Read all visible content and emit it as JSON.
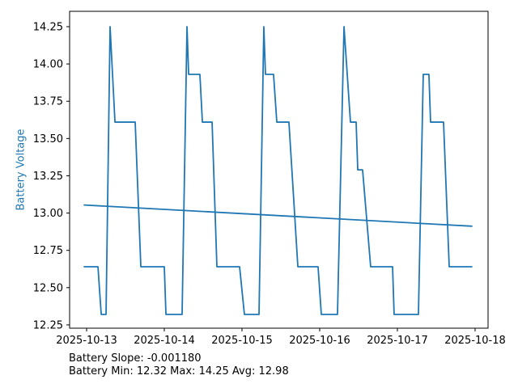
{
  "chart_data": {
    "type": "line",
    "title": "",
    "xlabel": "",
    "ylabel": "Battery Voltage",
    "ylabel_color": "#1f77b4",
    "line_color": "#1f77b4",
    "axis_color": "#000000",
    "background_color": "#ffffff",
    "grid": false,
    "legend": "none",
    "x_unit": "days since 2025-10-13 00:00",
    "xlim": [
      -0.219,
      5.167
    ],
    "ylim": [
      12.228,
      14.353
    ],
    "xticks": [
      {
        "t": 0,
        "label": "2025-10-13"
      },
      {
        "t": 1,
        "label": "2025-10-14"
      },
      {
        "t": 2,
        "label": "2025-10-15"
      },
      {
        "t": 3,
        "label": "2025-10-16"
      },
      {
        "t": 4,
        "label": "2025-10-17"
      },
      {
        "t": 5,
        "label": "2025-10-18"
      }
    ],
    "yticks": [
      {
        "v": 12.25,
        "label": "12.25"
      },
      {
        "v": 12.5,
        "label": "12.50"
      },
      {
        "v": 12.75,
        "label": "12.75"
      },
      {
        "v": 13.0,
        "label": "13.00"
      },
      {
        "v": 13.25,
        "label": "13.25"
      },
      {
        "v": 13.5,
        "label": "13.50"
      },
      {
        "v": 13.75,
        "label": "13.75"
      },
      {
        "v": 14.0,
        "label": "14.00"
      },
      {
        "v": 14.25,
        "label": "14.25"
      }
    ],
    "series": [
      {
        "name": "battery_voltage",
        "color": "#1f77b4",
        "points": [
          [
            -0.031,
            12.64
          ],
          [
            0.146,
            12.64
          ],
          [
            0.188,
            12.32
          ],
          [
            0.25,
            12.32
          ],
          [
            0.302,
            14.25
          ],
          [
            0.365,
            13.61
          ],
          [
            0.625,
            13.61
          ],
          [
            0.698,
            12.64
          ],
          [
            1.0,
            12.64
          ],
          [
            1.021,
            12.32
          ],
          [
            1.229,
            12.32
          ],
          [
            1.292,
            14.25
          ],
          [
            1.313,
            13.93
          ],
          [
            1.458,
            13.93
          ],
          [
            1.49,
            13.61
          ],
          [
            1.615,
            13.61
          ],
          [
            1.677,
            12.64
          ],
          [
            1.969,
            12.64
          ],
          [
            2.031,
            12.32
          ],
          [
            2.219,
            12.32
          ],
          [
            2.281,
            14.25
          ],
          [
            2.302,
            13.93
          ],
          [
            2.406,
            13.93
          ],
          [
            2.448,
            13.61
          ],
          [
            2.604,
            13.61
          ],
          [
            2.719,
            12.64
          ],
          [
            2.979,
            12.64
          ],
          [
            3.021,
            12.32
          ],
          [
            3.229,
            12.32
          ],
          [
            3.313,
            14.25
          ],
          [
            3.396,
            13.61
          ],
          [
            3.469,
            13.61
          ],
          [
            3.49,
            13.29
          ],
          [
            3.552,
            13.29
          ],
          [
            3.656,
            12.64
          ],
          [
            3.938,
            12.64
          ],
          [
            3.958,
            12.32
          ],
          [
            4.271,
            12.32
          ],
          [
            4.333,
            13.93
          ],
          [
            4.406,
            13.93
          ],
          [
            4.427,
            13.61
          ],
          [
            4.594,
            13.61
          ],
          [
            4.667,
            12.64
          ],
          [
            4.958,
            12.64
          ]
        ]
      },
      {
        "name": "battery_trend",
        "color": "#1f77b4",
        "points": [
          [
            -0.031,
            13.054
          ],
          [
            4.958,
            12.912
          ]
        ]
      }
    ],
    "stats": {
      "slope": "-0.001180",
      "min": "12.32",
      "max": "14.25",
      "avg": "12.98"
    },
    "annotation_slope": "Battery Slope: -0.001180",
    "annotation_stats": "Battery Min: 12.32 Max: 14.25 Avg: 12.98"
  }
}
